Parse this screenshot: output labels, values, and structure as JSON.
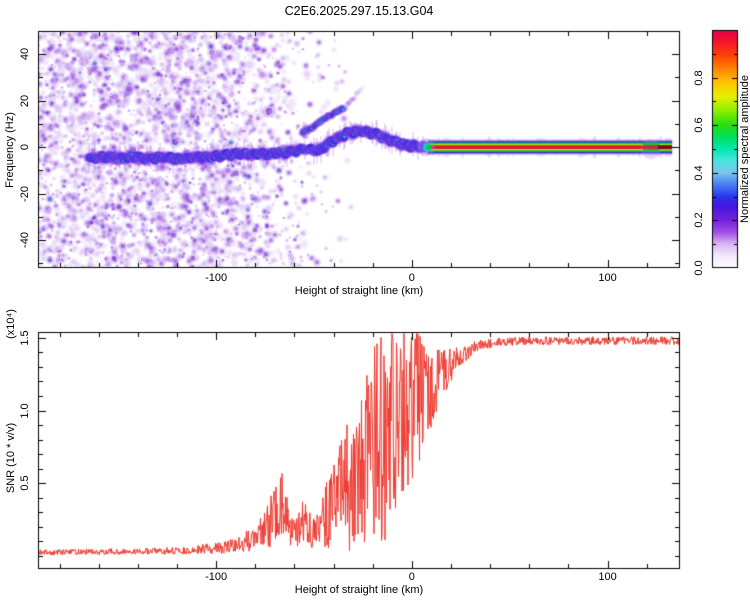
{
  "title": "C2E6.2025.297.15.13.G04",
  "chart_data": [
    {
      "type": "heatmap",
      "title": "C2E6.2025.297.15.13.G04",
      "xlabel": "Height of straight line (km)",
      "ylabel": "Frequency (Hz)",
      "xlim": [
        -191,
        137
      ],
      "ylim": [
        -52,
        50
      ],
      "grid": false,
      "xticks": {
        "major": [
          -100,
          0,
          100
        ],
        "labels": [
          "-100",
          "0",
          "100"
        ],
        "minor_step": 20
      },
      "yticks": {
        "major": [
          -40,
          -20,
          0,
          20,
          40
        ],
        "labels": [
          "-40",
          "-20",
          "0",
          "20",
          "40"
        ],
        "minor_step": 10
      },
      "colorbar": {
        "label": "Normalized spectral amplitude",
        "range": [
          0,
          1
        ],
        "ticks": [
          0.2,
          0.4,
          0.6,
          0.8
        ],
        "tick_labels": [
          "0.0",
          "0.2",
          "0.4",
          "0.6",
          "0.8"
        ],
        "tick_label_values": [
          0,
          0.2,
          0.4,
          0.6,
          0.8
        ],
        "minor_step": 0.1,
        "stops": [
          [
            0,
            "#ffffff"
          ],
          [
            0.05,
            "#f2eafb"
          ],
          [
            0.1,
            "#d9b8f2"
          ],
          [
            0.15,
            "#a050e8"
          ],
          [
            0.2,
            "#7722dd"
          ],
          [
            0.26,
            "#4416e0"
          ],
          [
            0.3,
            "#2a35ee"
          ],
          [
            0.36,
            "#4f8cf2"
          ],
          [
            0.4,
            "#7cc4ee"
          ],
          [
            0.45,
            "#4ce4de"
          ],
          [
            0.5,
            "#00eaaf"
          ],
          [
            0.55,
            "#00e060"
          ],
          [
            0.6,
            "#25df10"
          ],
          [
            0.66,
            "#8aee00"
          ],
          [
            0.72,
            "#e8ef00"
          ],
          [
            0.78,
            "#ffc400"
          ],
          [
            0.84,
            "#ff8000"
          ],
          [
            0.9,
            "#fb3b0a"
          ],
          [
            0.96,
            "#f20f33"
          ],
          [
            1,
            "#e60045"
          ]
        ]
      },
      "trace": {
        "comment": "wiggly Doppler trace: height_km vs frequency_Hz centerline",
        "start_km": -165,
        "end_km": 8,
        "centerline": [
          [
            -165,
            -5
          ],
          [
            -158,
            -4.2
          ],
          [
            -150,
            -4.8
          ],
          [
            -143,
            -4.2
          ],
          [
            -136,
            -5
          ],
          [
            -128,
            -4.3
          ],
          [
            -120,
            -5
          ],
          [
            -112,
            -4.6
          ],
          [
            -104,
            -4
          ],
          [
            -96,
            -3.6
          ],
          [
            -88,
            -2.6
          ],
          [
            -80,
            -3
          ],
          [
            -72,
            -2.6
          ],
          [
            -64,
            -2
          ],
          [
            -58,
            -1.4
          ],
          [
            -52,
            -0.6
          ],
          [
            -48,
            -1.6
          ],
          [
            -44,
            0.6
          ],
          [
            -40,
            3
          ],
          [
            -36,
            5
          ],
          [
            -31,
            6.5
          ],
          [
            -26,
            7
          ],
          [
            -21,
            6.3
          ],
          [
            -17,
            5.2
          ],
          [
            -13,
            3.8
          ],
          [
            -9,
            2.4
          ],
          [
            -5,
            1.2
          ],
          [
            0,
            0.6
          ],
          [
            4,
            0.3
          ],
          [
            8,
            0.1
          ]
        ],
        "colors": {
          "fuzz": "#8a3fe0",
          "blue": "#2b2be6",
          "cyan": "#17d3cf",
          "green": "#22d816",
          "yellow": "#f2ea00",
          "red": "#ee2212"
        }
      },
      "branch": {
        "centerline": [
          [
            -56,
            6
          ],
          [
            -50,
            9
          ],
          [
            -45,
            12
          ],
          [
            -40,
            14.5
          ],
          [
            -35,
            17
          ]
        ],
        "fade_tail": [
          [
            -34,
            17
          ],
          [
            -25,
            26
          ]
        ]
      },
      "straight_band": {
        "from_km": 8,
        "to_km": 133,
        "freq_hz": 0,
        "dark_core_from_km": 126,
        "colors": {
          "fuzz": "#b084ec",
          "blue": "#2a2ae6",
          "green": "#00cc33",
          "yellow": "#c8e800",
          "red": "#ea1238",
          "dark": "#7a0b20",
          "cap_cyan": "#19d3cf"
        }
      },
      "noise": {
        "comment": "background speckle density vs height_km (0..1)",
        "density": [
          [
            -191,
            1.0
          ],
          [
            -105,
            1.0
          ],
          [
            -88,
            0.8
          ],
          [
            -70,
            0.45
          ],
          [
            -55,
            0.22
          ],
          [
            -40,
            0.1
          ],
          [
            -25,
            0.04
          ],
          [
            -10,
            0.015
          ],
          [
            0,
            0.006
          ],
          [
            137,
            0.002
          ]
        ],
        "palette": [
          [
            0.3,
            "#ead9f8"
          ],
          [
            0.22,
            "#d9bcf4"
          ],
          [
            0.18,
            "#c49af0"
          ],
          [
            0.12,
            "#a76ae6"
          ],
          [
            0.09,
            "#8f46dc"
          ],
          [
            0.05,
            "#7a2ad4"
          ],
          [
            0.03,
            "#6519c6"
          ],
          [
            0.008,
            "#3d17c9"
          ],
          [
            0.002,
            "#2a32e0"
          ]
        ]
      }
    },
    {
      "type": "line",
      "xlabel": "Height of straight line (km)",
      "ylabel": "SNR (10 * v/v)",
      "scale_note": "(x10⁴)",
      "xlim": [
        -191,
        137
      ],
      "ylim": [
        -0.09,
        1.54
      ],
      "grid": false,
      "xticks": {
        "major": [
          -100,
          0,
          100
        ],
        "labels": [
          "-100",
          "0",
          "100"
        ],
        "minor_step": 20
      },
      "yticks": {
        "major": [
          0.5,
          1.0,
          1.5
        ],
        "labels": [
          "0.5",
          "1.0",
          "1.5"
        ],
        "minor_step": 0.1
      },
      "line_color": "#ee3a30",
      "envelope_comment": "height_km, mean SNR (x10^4), noise half-amplitude",
      "envelope": [
        [
          -191,
          0.025,
          0.02
        ],
        [
          -150,
          0.03,
          0.02
        ],
        [
          -120,
          0.035,
          0.025
        ],
        [
          -105,
          0.05,
          0.035
        ],
        [
          -95,
          0.06,
          0.045
        ],
        [
          -88,
          0.09,
          0.06
        ],
        [
          -80,
          0.12,
          0.09
        ],
        [
          -74,
          0.2,
          0.15
        ],
        [
          -69,
          0.33,
          0.25
        ],
        [
          -66,
          0.38,
          0.28
        ],
        [
          -63,
          0.2,
          0.14
        ],
        [
          -59,
          0.17,
          0.12
        ],
        [
          -55,
          0.26,
          0.2
        ],
        [
          -51,
          0.16,
          0.11
        ],
        [
          -47,
          0.18,
          0.14
        ],
        [
          -43,
          0.3,
          0.26
        ],
        [
          -39,
          0.38,
          0.33
        ],
        [
          -35,
          0.45,
          0.4
        ],
        [
          -31,
          0.5,
          0.47
        ],
        [
          -27,
          0.6,
          0.57
        ],
        [
          -23,
          0.65,
          0.62
        ],
        [
          -19,
          0.75,
          0.72
        ],
        [
          -15,
          0.8,
          0.75
        ],
        [
          -11,
          0.85,
          0.7
        ],
        [
          -7,
          0.95,
          0.6
        ],
        [
          -3,
          1.0,
          0.55
        ],
        [
          1,
          1.05,
          0.5
        ],
        [
          5,
          1.1,
          0.42
        ],
        [
          9,
          1.15,
          0.3
        ],
        [
          13,
          1.2,
          0.22
        ],
        [
          17,
          1.27,
          0.15
        ],
        [
          21,
          1.33,
          0.1
        ],
        [
          26,
          1.38,
          0.06
        ],
        [
          31,
          1.43,
          0.045
        ],
        [
          36,
          1.455,
          0.035
        ],
        [
          45,
          1.47,
          0.03
        ],
        [
          60,
          1.48,
          0.028
        ],
        [
          137,
          1.48,
          0.028
        ]
      ]
    }
  ]
}
